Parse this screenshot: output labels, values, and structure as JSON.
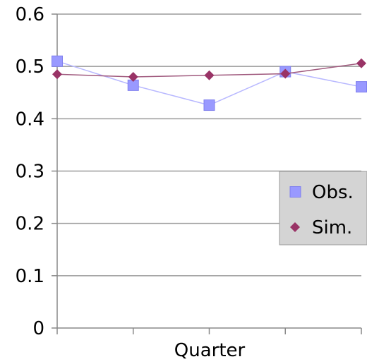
{
  "chart_data": {
    "type": "line",
    "title": "",
    "xlabel": "Quarter",
    "ylabel": "",
    "ylim": [
      0,
      0.6
    ],
    "yticks": [
      "0",
      "0.1",
      "0.2",
      "0.3",
      "0.4",
      "0.5",
      "0.6"
    ],
    "x": [
      1,
      2,
      3,
      4,
      5
    ],
    "grid": "horizontal",
    "legend_position": "right",
    "series": [
      {
        "name": "Obs.",
        "marker": "square",
        "color": "#9999ff",
        "line_color": "#b8b8ff",
        "values": [
          0.51,
          0.464,
          0.426,
          0.49,
          0.461
        ]
      },
      {
        "name": "Sim.",
        "marker": "diamond",
        "color": "#993366",
        "line_color": "#a05a7e",
        "values": [
          0.485,
          0.48,
          0.483,
          0.486,
          0.506
        ]
      }
    ]
  }
}
